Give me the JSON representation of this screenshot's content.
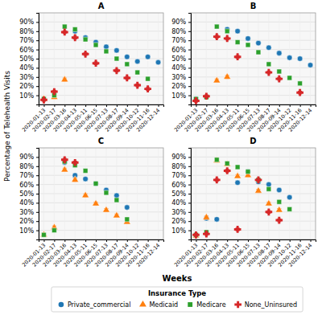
{
  "chart_data": [
    {
      "type": "scatter",
      "title": "A",
      "ylabel": "Percentage of Telehealth Visits",
      "xlabel": "Weeks",
      "legend": "bottom",
      "legend_title": "Insurance Type",
      "grid": true,
      "categories": [
        "2020-01-13",
        "2020-02-17",
        "2020-03-16",
        "2020-04-13",
        "2020-05-11",
        "2020-06-15",
        "2020-07-13",
        "2020-08-17",
        "2020-09-14",
        "2020-10-12",
        "2020-11-16",
        "2020-12-14"
      ],
      "ylim": [
        0,
        1.0
      ],
      "yticks": [
        {
          "value": 0.1,
          "label": "10%"
        },
        {
          "value": 0.2,
          "label": "20%"
        },
        {
          "value": 0.3,
          "label": "30%"
        },
        {
          "value": 0.4,
          "label": "40%"
        },
        {
          "value": 0.5,
          "label": "50%"
        },
        {
          "value": 0.6,
          "label": "60%"
        },
        {
          "value": 0.7,
          "label": "70%"
        },
        {
          "value": 0.8,
          "label": "80%"
        },
        {
          "value": 0.9,
          "label": "90%"
        }
      ],
      "series": [
        {
          "name": "Private_commercial",
          "marker": "circle",
          "values": [
            null,
            null,
            null,
            0.8,
            0.73,
            0.68,
            0.63,
            0.59,
            0.52,
            0.47,
            0.52,
            0.46
          ],
          "errors": [
            null,
            null,
            null,
            0.018,
            0.018,
            0.018,
            0.018,
            0.018,
            0.018,
            0.018,
            0.018,
            0.018
          ]
        },
        {
          "name": "Medicaid",
          "marker": "triangle",
          "values": [
            0.06,
            0.08,
            0.27,
            null,
            null,
            null,
            null,
            null,
            null,
            null,
            null,
            null
          ],
          "errors": [
            0.018,
            0.018,
            0.018,
            null,
            null,
            null,
            null,
            null,
            null,
            null,
            null,
            null
          ]
        },
        {
          "name": "Medicare",
          "marker": "square",
          "values": [
            0.06,
            0.1,
            0.85,
            0.82,
            0.71,
            0.65,
            0.58,
            0.5,
            0.44,
            0.35,
            0.28,
            null
          ],
          "errors": [
            0.018,
            0.018,
            0.018,
            0.018,
            0.018,
            0.018,
            0.018,
            0.018,
            0.018,
            0.018,
            0.018,
            null
          ]
        },
        {
          "name": "None_Uninsured",
          "marker": "plus",
          "values": [
            0.05,
            0.14,
            0.79,
            0.73,
            0.55,
            0.45,
            null,
            0.37,
            0.29,
            0.21,
            0.17,
            null
          ],
          "errors": [
            0.015,
            0.015,
            0.015,
            0.015,
            0.015,
            0.015,
            null,
            0.015,
            0.015,
            0.015,
            0.015,
            null
          ]
        }
      ]
    },
    {
      "type": "scatter",
      "title": "B",
      "grid": true,
      "categories": [
        "2020-01-13",
        "2020-02-17",
        "2020-03-16",
        "2020-04-13",
        "2020-05-11",
        "2020-06-15",
        "2020-07-13",
        "2020-08-17",
        "2020-09-14",
        "2020-10-12",
        "2020-11-16",
        "2020-12-14"
      ],
      "ylim": [
        0,
        1.0
      ],
      "yticks": [
        {
          "value": 0.1,
          "label": "10%"
        },
        {
          "value": 0.2,
          "label": "20%"
        },
        {
          "value": 0.3,
          "label": "30%"
        },
        {
          "value": 0.4,
          "label": "40%"
        },
        {
          "value": 0.5,
          "label": "50%"
        },
        {
          "value": 0.6,
          "label": "60%"
        },
        {
          "value": 0.7,
          "label": "70%"
        },
        {
          "value": 0.8,
          "label": "80%"
        },
        {
          "value": 0.9,
          "label": "90%"
        }
      ],
      "series": [
        {
          "name": "Private_commercial",
          "marker": "circle",
          "values": [
            0.06,
            null,
            null,
            0.82,
            0.8,
            0.72,
            0.67,
            0.62,
            0.56,
            0.51,
            0.5,
            0.43
          ],
          "errors": [
            0.018,
            null,
            null,
            0.018,
            0.018,
            0.018,
            0.018,
            0.018,
            0.018,
            0.018,
            0.018,
            0.018
          ]
        },
        {
          "name": "Medicaid",
          "marker": "triangle",
          "values": [
            null,
            null,
            0.26,
            0.3,
            null,
            null,
            null,
            null,
            null,
            null,
            null,
            null
          ],
          "errors": [
            null,
            null,
            0.018,
            0.018,
            null,
            null,
            null,
            null,
            null,
            null,
            null,
            null
          ]
        },
        {
          "name": "Medicare",
          "marker": "square",
          "values": [
            0.06,
            0.08,
            0.85,
            0.8,
            0.68,
            0.65,
            0.57,
            0.44,
            0.36,
            0.29,
            0.23,
            null
          ],
          "errors": [
            0.018,
            0.018,
            0.018,
            0.018,
            0.018,
            0.018,
            0.018,
            0.018,
            0.018,
            0.018,
            0.018,
            null
          ]
        },
        {
          "name": "None_Uninsured",
          "marker": "plus",
          "values": [
            0.04,
            0.09,
            0.74,
            0.72,
            0.52,
            null,
            null,
            0.35,
            0.28,
            null,
            0.13,
            null
          ],
          "errors": [
            0.015,
            0.015,
            0.015,
            0.015,
            0.015,
            null,
            null,
            0.015,
            0.015,
            null,
            0.015,
            null
          ]
        }
      ]
    },
    {
      "type": "scatter",
      "title": "C",
      "grid": true,
      "categories": [
        "2020-01-13",
        "2020-02-17",
        "2020-03-16",
        "2020-04-13",
        "2020-05-11",
        "2020-06-15",
        "2020-07-13",
        "2020-08-17",
        "2020-09-14",
        "2020-10-12",
        "2020-11-16",
        "2020-12-14"
      ],
      "ylim": [
        0,
        1.0
      ],
      "yticks": [
        {
          "value": 0.1,
          "label": "10%"
        },
        {
          "value": 0.2,
          "label": "20%"
        },
        {
          "value": 0.3,
          "label": "30%"
        },
        {
          "value": 0.4,
          "label": "40%"
        },
        {
          "value": 0.5,
          "label": "50%"
        },
        {
          "value": 0.6,
          "label": "60%"
        },
        {
          "value": 0.7,
          "label": "70%"
        },
        {
          "value": 0.8,
          "label": "80%"
        },
        {
          "value": 0.9,
          "label": "90%"
        }
      ],
      "series": [
        {
          "name": "Private_commercial",
          "marker": "circle",
          "values": [
            null,
            null,
            0.84,
            0.7,
            0.66,
            0.61,
            0.54,
            0.48,
            0.35,
            null,
            null,
            null
          ],
          "errors": [
            null,
            null,
            0.018,
            0.018,
            0.018,
            0.018,
            0.018,
            0.018,
            0.018,
            null,
            null,
            null
          ]
        },
        {
          "name": "Medicaid",
          "marker": "triangle",
          "values": [
            0.05,
            0.13,
            0.76,
            0.65,
            0.48,
            0.39,
            0.32,
            0.26,
            0.19,
            null,
            null,
            null
          ],
          "errors": [
            0.018,
            0.018,
            0.018,
            0.018,
            0.018,
            0.018,
            0.018,
            0.018,
            0.018,
            null,
            null,
            null
          ]
        },
        {
          "name": "Medicare",
          "marker": "square",
          "values": [
            0.05,
            0.1,
            0.85,
            0.81,
            0.75,
            0.61,
            0.51,
            0.43,
            0.22,
            null,
            null,
            null
          ],
          "errors": [
            0.018,
            0.018,
            0.018,
            0.018,
            0.018,
            0.018,
            0.018,
            0.018,
            0.018,
            null,
            null,
            null
          ]
        },
        {
          "name": "None_Uninsured",
          "marker": "plus",
          "values": [
            null,
            null,
            0.87,
            0.84,
            null,
            null,
            null,
            null,
            null,
            null,
            null,
            null
          ],
          "errors": [
            null,
            null,
            0.015,
            0.015,
            null,
            null,
            null,
            null,
            null,
            null,
            null,
            null
          ]
        }
      ]
    },
    {
      "type": "scatter",
      "title": "D",
      "grid": true,
      "categories": [
        "2020-01-13",
        "2020-02-17",
        "2020-03-16",
        "2020-04-13",
        "2020-05-11",
        "2020-06-15",
        "2020-07-13",
        "2020-08-17",
        "2020-09-14",
        "2020-10-12",
        "2020-11-16",
        "2020-12-14"
      ],
      "ylim": [
        0,
        1.0
      ],
      "yticks": [
        {
          "value": 0.1,
          "label": "10%"
        },
        {
          "value": 0.2,
          "label": "20%"
        },
        {
          "value": 0.3,
          "label": "30%"
        },
        {
          "value": 0.4,
          "label": "40%"
        },
        {
          "value": 0.5,
          "label": "50%"
        },
        {
          "value": 0.6,
          "label": "60%"
        },
        {
          "value": 0.7,
          "label": "70%"
        },
        {
          "value": 0.8,
          "label": "80%"
        },
        {
          "value": 0.9,
          "label": "90%"
        }
      ],
      "series": [
        {
          "name": "Private_commercial",
          "marker": "circle",
          "values": [
            null,
            0.23,
            0.22,
            null,
            0.62,
            0.74,
            0.63,
            0.6,
            0.54,
            0.46,
            null,
            null
          ],
          "errors": [
            null,
            0.018,
            0.018,
            null,
            0.018,
            0.018,
            0.018,
            0.018,
            0.018,
            0.018,
            null,
            null
          ]
        },
        {
          "name": "Medicaid",
          "marker": "triangle",
          "values": [
            0.04,
            0.24,
            0.86,
            0.82,
            0.69,
            0.7,
            0.53,
            0.39,
            0.32,
            null,
            null,
            null
          ],
          "errors": [
            0.018,
            0.018,
            0.018,
            0.018,
            0.018,
            0.018,
            0.018,
            0.018,
            0.018,
            null,
            null,
            null
          ]
        },
        {
          "name": "Medicare",
          "marker": "square",
          "values": [
            0.05,
            0.08,
            0.87,
            0.83,
            0.79,
            0.74,
            0.65,
            0.55,
            0.41,
            0.33,
            null,
            null
          ],
          "errors": [
            0.018,
            0.018,
            0.018,
            0.018,
            0.018,
            0.018,
            0.018,
            0.018,
            0.018,
            0.018,
            null,
            null
          ]
        },
        {
          "name": "None_Uninsured",
          "marker": "plus",
          "values": [
            0.05,
            0.06,
            0.65,
            0.75,
            0.11,
            null,
            0.65,
            0.3,
            0.21,
            null,
            null,
            null
          ],
          "errors": [
            0.015,
            0.015,
            0.015,
            0.015,
            0.015,
            null,
            0.015,
            0.015,
            0.015,
            null,
            null,
            null
          ]
        }
      ]
    }
  ]
}
